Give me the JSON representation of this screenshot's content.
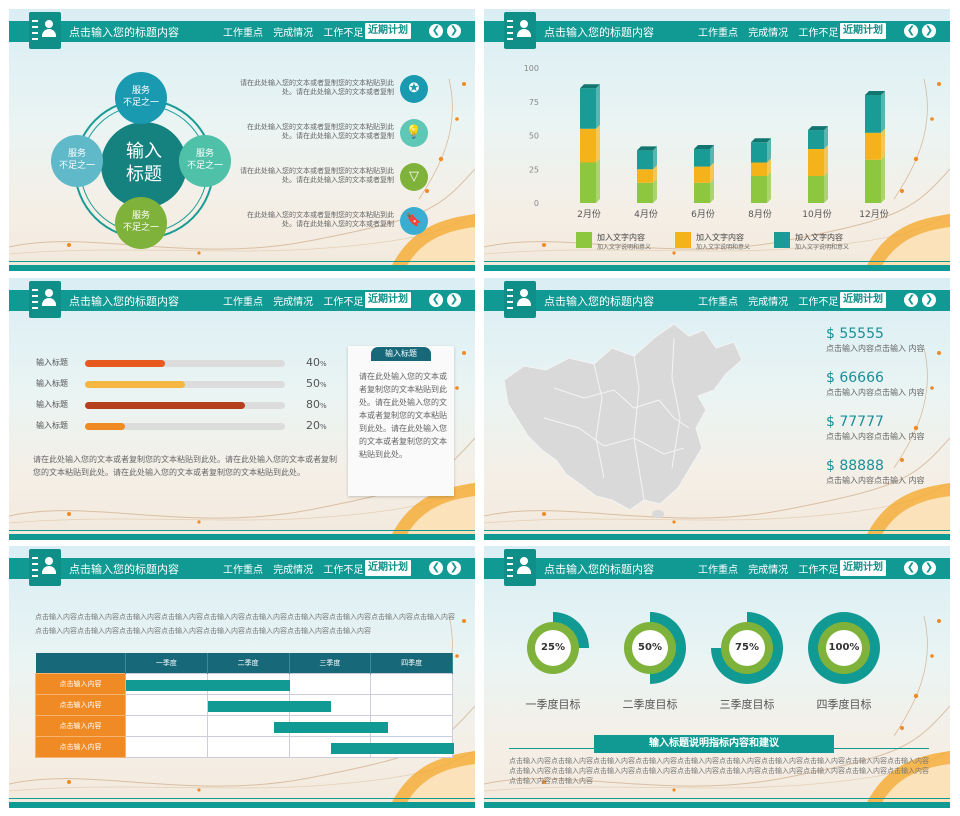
{
  "header": {
    "title": "点击输入您的标题内容",
    "nav": [
      "工作重点",
      "完成情况",
      "工作不足"
    ],
    "active": "近期计划",
    "prev": "❮",
    "next": "❯"
  },
  "slide1": {
    "center_label": "输入\n标题",
    "nodes": [
      "服务\n不足之一",
      "服务\n不足之一",
      "服务\n不足之一",
      "服务\n不足之一"
    ],
    "items": [
      {
        "text": "请在此处输入您的文本或者复制您的文本粘贴到此处。请在此处输入您的文本或者复制",
        "icon": "medal-icon",
        "color": "#1a9ab0"
      },
      {
        "text": "在此处输入您的文本或者复制您的文本粘贴到此处。请在此处输入您的文本或者复制",
        "icon": "lightbulb-icon",
        "color": "#5fc7b5"
      },
      {
        "text": "请在此处输入您的文本或者复制您的文本粘贴到此处。请在此处输入您的文本或者复制",
        "icon": "funnel-icon",
        "color": "#7fb23a"
      },
      {
        "text": "在此处输入您的文本或者复制您的文本粘贴到此处。请在此处输入您的文本或者复制",
        "icon": "door-hanger-icon",
        "color": "#3aaed0"
      }
    ]
  },
  "slide2": {
    "chart_data": {
      "type": "bar",
      "stacked": true,
      "categories": [
        "2月份",
        "4月份",
        "6月份",
        "8月份",
        "10月份",
        "12月份"
      ],
      "series": [
        {
          "name": "加入文字内容",
          "values": [
            30,
            15,
            15,
            20,
            20,
            32
          ],
          "color": "#8dc63f"
        },
        {
          "name": "加入文字内容",
          "values": [
            25,
            10,
            12,
            10,
            20,
            20
          ],
          "color": "#f5b31b"
        },
        {
          "name": "加入文字内容",
          "values": [
            30,
            14,
            13,
            15,
            14,
            28
          ],
          "color": "#1a9b95"
        }
      ],
      "yticks": [
        "100",
        "75",
        "50",
        "25",
        "0"
      ],
      "ylim": [
        0,
        100
      ],
      "legend": [
        {
          "title": "加入文字内容",
          "sub": "加入文字说明和意义"
        },
        {
          "title": "加入文字内容",
          "sub": "加入文字说明和意义"
        },
        {
          "title": "加入文字内容",
          "sub": "加入文字说明和意义"
        }
      ]
    }
  },
  "slide3": {
    "bars": [
      {
        "label": "输入标题",
        "value": "40",
        "pct": 0.4,
        "color": "#e75a1f"
      },
      {
        "label": "输入标题",
        "value": "50",
        "pct": 0.5,
        "color": "#f5b642"
      },
      {
        "label": "输入标题",
        "value": "80",
        "pct": 0.8,
        "color": "#b5401f"
      },
      {
        "label": "输入标题",
        "value": "20",
        "pct": 0.2,
        "color": "#f08a24"
      }
    ],
    "unit": "%",
    "paragraph": "请在此处输入您的文本或者复制您的文本粘贴到此处。请在此处输入您的文本或者复制您的文本粘贴到此处。请在此处输入您的文本或者复制您的文本粘贴到此处。",
    "card_title": "输入标题",
    "card_text": "请在此处输入您的文本或者复制您的文本粘贴到此处。请在此处输入您的文本或者复制您的文本粘贴到此处。请在此处输入您的文本或者复制您的文本粘贴到此处。"
  },
  "slide4": {
    "stats": [
      {
        "value": "$ 55555",
        "label": "点击输入内容点击输入 内容"
      },
      {
        "value": "$ 66666",
        "label": "点击输入内容点击输入 内容"
      },
      {
        "value": "$ 77777",
        "label": "点击输入内容点击输入 内容"
      },
      {
        "value": "$ 88888",
        "label": "点击输入内容点击输入 内容"
      }
    ]
  },
  "slide5": {
    "intro": "点击输入内容点击输入内容点击输入内容点击输入内容点击输入内容点击输入内容点击输入内容点击输入内容点击输入内容点击输入内容点击输入内容点击输入内容点击输入内容点击输入内容点击输入内容点击输入内容点击输入内容点击输入内容",
    "quarters": [
      "一季度",
      "二季度",
      "三季度",
      "四季度"
    ],
    "rows": [
      "点击输入内容",
      "点击输入内容",
      "点击输入内容",
      "点击输入内容"
    ],
    "gantt": [
      [
        0,
        2
      ],
      [
        1,
        2.5
      ],
      [
        1.8,
        3.2
      ],
      [
        2.5,
        4
      ]
    ]
  },
  "slide6": {
    "goals": [
      {
        "pct": 25,
        "label": "25%",
        "name": "一季度目标"
      },
      {
        "pct": 50,
        "label": "50%",
        "name": "二季度目标"
      },
      {
        "pct": 75,
        "label": "75%",
        "name": "三季度目标"
      },
      {
        "pct": 100,
        "label": "100%",
        "name": "四季度目标"
      }
    ],
    "banner": "输入标题说明指标内容和建议",
    "body": "点击输入内容点击输入内容点击输入内容点击输入内容点击输入内容点击输入内容点击输入内容点击输入内容点击输入内容点击输入内容点击输入内容点击输入内容点击输入内容点击输入内容点击输入内容点击输入内容点击输入内容点击输入内容点击输入内容点击输入内容点击输入内容点击输入内容"
  }
}
